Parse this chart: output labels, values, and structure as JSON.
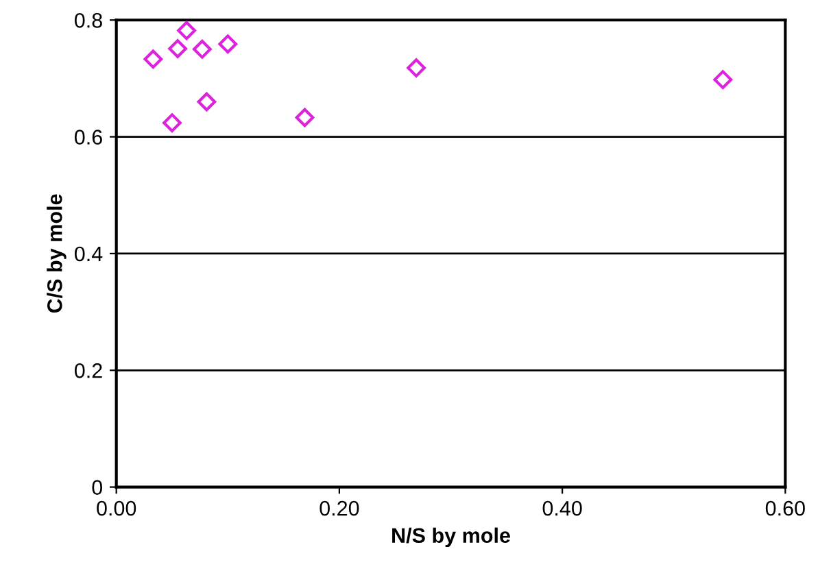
{
  "chart_data": {
    "type": "scatter",
    "xlabel": "N/S by mole",
    "ylabel": "C/S by mole",
    "x": [
      0.033,
      0.055,
      0.063,
      0.077,
      0.1,
      0.05,
      0.081,
      0.169,
      0.269,
      0.544
    ],
    "series": [
      {
        "color": "#dd22dd",
        "values": [
          0.733,
          0.751,
          0.782,
          0.75,
          0.759,
          0.624,
          0.66,
          0.633,
          0.718,
          0.698
        ]
      }
    ],
    "xlim": [
      0,
      0.6
    ],
    "ylim": [
      0,
      0.8
    ],
    "xticks": [
      {
        "value": 0,
        "label": "0.00"
      },
      {
        "value": 0.2,
        "label": "0.20"
      },
      {
        "value": 0.4,
        "label": "0.40"
      },
      {
        "value": 0.6,
        "label": "0.60"
      }
    ],
    "yticks": [
      0,
      0.2,
      0.4,
      0.6,
      0.8
    ],
    "grid": "y",
    "marker": "diamond",
    "legend": false
  }
}
